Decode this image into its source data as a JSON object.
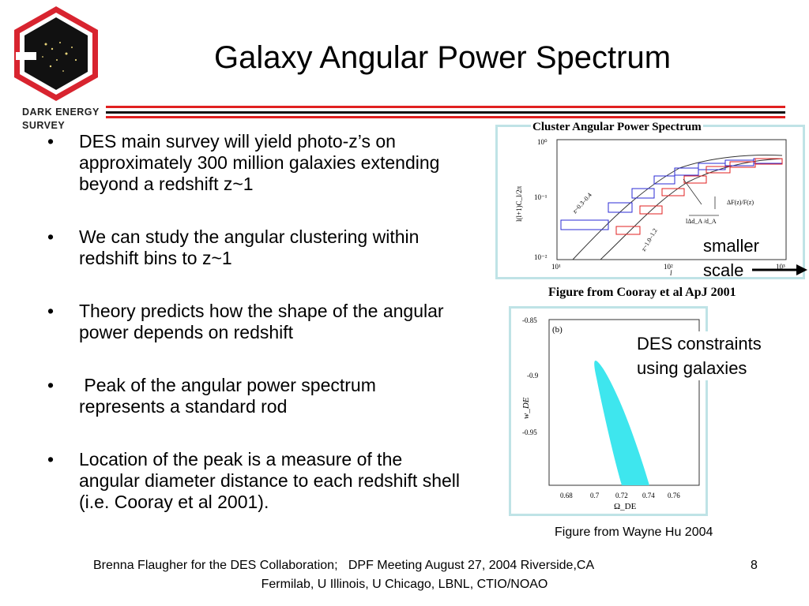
{
  "header": {
    "logo_line1": "DARK ENERGY",
    "logo_line2": "SURVEY",
    "title": "Galaxy Angular Power Spectrum"
  },
  "bullets": [
    {
      "marker": "•",
      "text": "DES main survey will yield photo-z’s on approximately 300 million galaxies extending beyond a redshift z~1"
    },
    {
      "marker": "•",
      "text": "We can study the angular clustering within redshift bins to z~1"
    },
    {
      "marker": "•",
      "text": "Theory predicts how the shape of the angular power depends on redshift"
    },
    {
      "marker": "•",
      "text": " Peak of the angular power spectrum represents a standard rod"
    },
    {
      "marker": "•",
      "text": "Location of the peak is a measure of the angular diameter distance to each redshift shell (i.e. Cooray et al 2001)."
    }
  ],
  "figure1": {
    "title": "Cluster Angular Power Spectrum",
    "ylabel": "l(l+1)C_l/2π",
    "xlabel": "l",
    "xticks": [
      "10¹",
      "10²",
      "10³"
    ],
    "yticks": [
      "10⁰",
      "10⁻¹",
      "10⁻²"
    ],
    "curve_label_1": "z~0.3–0.4",
    "curve_label_2": "z~1.0–1.2",
    "annot_f": "ΔF(z)/F(z)",
    "annot_d": "lΔd_A /d_A",
    "caption": "Figure from Cooray et al ApJ 2001",
    "colors": {
      "series1": "#2b2bd6",
      "series2": "#e02020",
      "curve": "#333333"
    }
  },
  "callout_smaller": {
    "line1": "smaller",
    "line2": "scale"
  },
  "figure2": {
    "panel": "(b)",
    "ylabel": "w_DE",
    "xlabel": "Ω_DE",
    "xticks": [
      "0.68",
      "0.7",
      "0.72",
      "0.74",
      "0.76"
    ],
    "yticks": [
      "-0.85",
      "-0.9",
      "-0.95"
    ],
    "contour_color": "#3ee6ee",
    "caption": "Figure from Wayne Hu 2004"
  },
  "callout_des": {
    "line1": "DES constraints",
    "line2": "using galaxies"
  },
  "footer": {
    "line1": "Brenna Flaugher for the DES Collaboration;   DPF Meeting August 27, 2004 Riverside,CA",
    "page": "8",
    "line2": "Fermilab, U Illinois, U Chicago, LBNL, CTIO/NOAO"
  }
}
